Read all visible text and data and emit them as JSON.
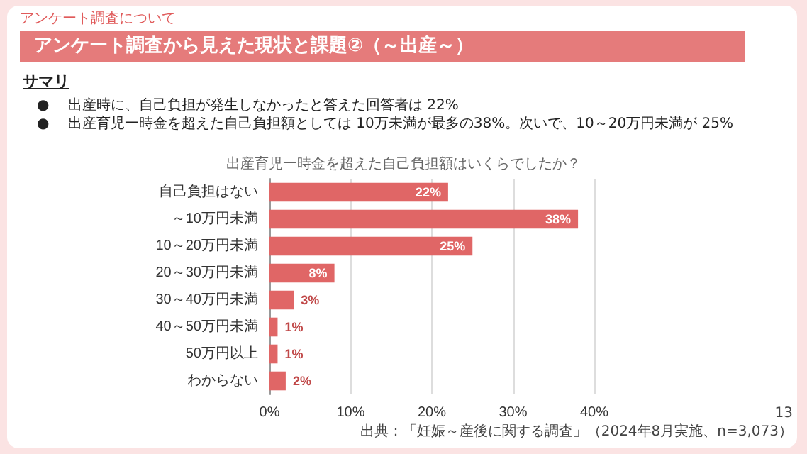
{
  "chart_data": {
    "type": "bar",
    "orientation": "horizontal",
    "title": "アンケート調査から見えた現状と課題②（～出産～）",
    "subtitle": "出産育児一時金を超えた自己負担額はいくらでしたか？",
    "annotations": [
      "アンケート調査について",
      "サマリ",
      "出産時に、自己負担が発生しなかったと答えた回答者は 22%",
      "出産育児一時金を超えた自己負担額としては 10万未満が最多の38%。次いで、10～20万円未満が 25%",
      "13",
      "出典：「妊娠～産後に関する調査」（2024年8月実施、n=3,073）",
      "●"
    ],
    "categories": [
      "自己負担はない",
      "～10万円未満",
      "10～20万円未満",
      "20～30万円未満",
      "30～40万円未満",
      "40～50万円未満",
      "50万円以上",
      "わからない"
    ],
    "values": [
      22,
      38,
      25,
      8,
      3,
      1,
      1,
      2
    ],
    "color": "#e06666",
    "xlim": [
      0,
      40
    ],
    "xticks": [
      {
        "value": 0,
        "label": "0%"
      },
      {
        "value": 10,
        "label": "10%"
      },
      {
        "value": 20,
        "label": "20%"
      },
      {
        "value": 30,
        "label": "30%"
      },
      {
        "value": 40,
        "label": "40%"
      }
    ],
    "value_labels": [
      "22%",
      "38%",
      "25%",
      "8%",
      "3%",
      "1%",
      "1%",
      "2%"
    ],
    "grid": "x"
  }
}
